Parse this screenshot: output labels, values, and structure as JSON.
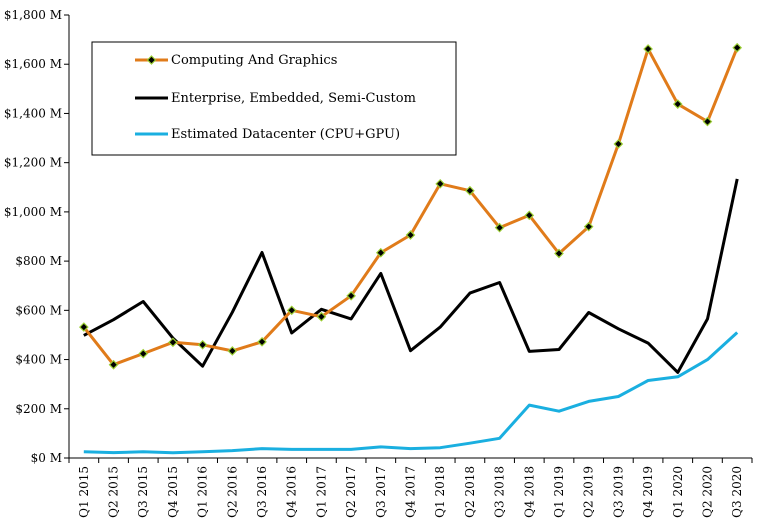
{
  "chart_data": {
    "type": "line",
    "title": "",
    "xlabel": "",
    "ylabel": "",
    "categories": [
      "Q1 2015",
      "Q2 2015",
      "Q3 2015",
      "Q4 2015",
      "Q1 2016",
      "Q2 2016",
      "Q3 2016",
      "Q4 2016",
      "Q1 2017",
      "Q2 2017",
      "Q3 2017",
      "Q4 2017",
      "Q1 2018",
      "Q2 2018",
      "Q3 2018",
      "Q4 2018",
      "Q1 2019",
      "Q2 2019",
      "Q3 2019",
      "Q4 2019",
      "Q1 2020",
      "Q2 2020",
      "Q3 2020"
    ],
    "y_ticks": [
      "$0 M",
      "$200 M",
      "$400 M",
      "$600 M",
      "$800 M",
      "$1,000 M",
      "$1,200 M",
      "$1,400 M",
      "$1,600 M",
      "$1,800 M"
    ],
    "ylim": [
      0,
      1800
    ],
    "grid": false,
    "legend_position": "top-left",
    "series": [
      {
        "name": "Computing And Graphics",
        "color": "#e07b1a",
        "marker": "diamond",
        "marker_color": "#9acd32",
        "values": [
          532,
          379,
          424,
          470,
          460,
          435,
          472,
          600,
          574,
          659,
          834,
          906,
          1114,
          1086,
          936,
          986,
          831,
          940,
          1276,
          1662,
          1438,
          1367,
          1667
        ]
      },
      {
        "name": "Enterprise, Embedded, Semi-Custom",
        "color": "#000000",
        "marker": "none",
        "values": [
          498,
          562,
          636,
          487,
          373,
          592,
          835,
          508,
          604,
          565,
          750,
          436,
          532,
          670,
          713,
          433,
          441,
          591,
          525,
          467,
          348,
          565,
          1134
        ]
      },
      {
        "name": "Estimated Datacenter (CPU+GPU)",
        "color": "#1aafe0",
        "marker": "none",
        "values": [
          25,
          22,
          25,
          21,
          25,
          30,
          38,
          35,
          35,
          35,
          45,
          38,
          42,
          60,
          80,
          215,
          190,
          230,
          250,
          315,
          330,
          400,
          510
        ]
      }
    ]
  }
}
